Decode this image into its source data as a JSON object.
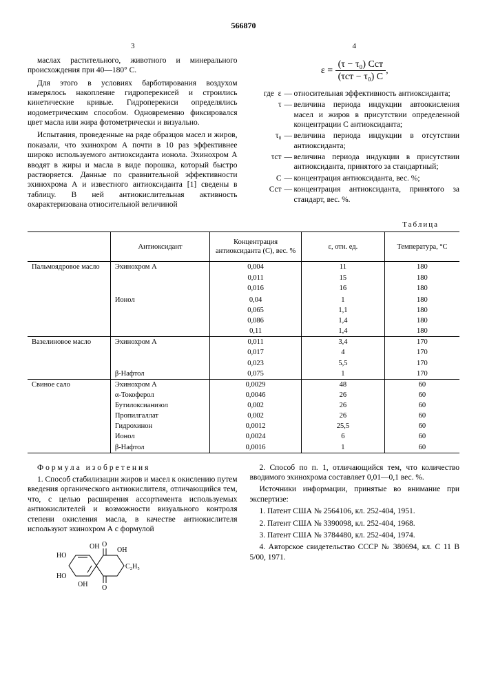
{
  "doc_number": "566870",
  "page_left": "3",
  "page_right": "4",
  "line_markers": [
    "5",
    "10",
    "15",
    "20",
    "25",
    "30"
  ],
  "col_left": {
    "p1": "маслах растительного, животного и минерального происхождения при 40—180° С.",
    "p2": "Для этого в условиях барботирования воздухом измерялось накопление гидроперекисей и строились кинетические кривые. Гидроперекиси определялись иодометрическим способом. Одновременно фиксировался цвет масла или жира фотометрически и визуально.",
    "p3": "Испытания, проведенные на ряде образцов масел и жиров, показали, что эхинохром А почти в 10 раз эффективнее широко используемого антиоксиданта ионола. Эхинохром А вводят в жиры и масла в виде порошка, который быстро растворяется. Данные по сравнительной эффективности эхинохрома А и известного антиоксиданта [1] сведены в таблицу. В ней антиокислительная активность охарактеризована относительной величиной"
  },
  "col_right": {
    "formula_lhs": "ε =",
    "formula_num": "(τ − τ₀) Cст",
    "formula_den": "(τст − τ₀) C",
    "formula_trail": ",",
    "where": "где",
    "defs": [
      {
        "sym": "ε",
        "txt": "относительная эффективность антиоксиданта;"
      },
      {
        "sym": "τ",
        "txt": "величина периода индукции автоокисления масел и жиров в присутствии определенной концентрации C антиоксиданта;"
      },
      {
        "sym": "τ₀",
        "txt": "величина периода индукции в отсутствии антиоксиданта;"
      },
      {
        "sym": "τст",
        "txt": "величина периода индукции в присутствии антиоксиданта, принятого за стандартный;"
      },
      {
        "sym": "C",
        "txt": "концентрация антиоксиданта, вес. %;"
      },
      {
        "sym": "Cст",
        "txt": "концентрация антиоксиданта, принятого за стандарт, вес. %."
      }
    ]
  },
  "table": {
    "label": "Таблица",
    "headers": [
      "",
      "Антиоксидант",
      "Концентрация антиоксиданта (С), вес. %",
      "ε, отн. ед.",
      "Температура, °С"
    ],
    "groups": [
      {
        "name": "Пальмоядровое масло",
        "rows": [
          [
            "Эхинохром А",
            "0,004",
            "11",
            "180"
          ],
          [
            "",
            "0,011",
            "15",
            "180"
          ],
          [
            "",
            "0,016",
            "16",
            "180"
          ],
          [
            "Ионол",
            "0,04",
            "1",
            "180"
          ],
          [
            "",
            "0,065",
            "1,1",
            "180"
          ],
          [
            "",
            "0,086",
            "1,4",
            "180"
          ],
          [
            "",
            "0,11",
            "1,4",
            "180"
          ]
        ],
        "split_after": 3
      },
      {
        "name": "Вазелиновое масло",
        "rows": [
          [
            "Эхинохром А",
            "0,011",
            "3,4",
            "170"
          ],
          [
            "",
            "0,017",
            "4",
            "170"
          ],
          [
            "",
            "0,023",
            "5,5",
            "170"
          ],
          [
            "β-Нафтол",
            "0,075",
            "1",
            "170"
          ]
        ]
      },
      {
        "name": "Свиное сало",
        "rows": [
          [
            "Эхинохром А",
            "0,0029",
            "48",
            "60"
          ],
          [
            "α-Токоферол",
            "0,0046",
            "26",
            "60"
          ],
          [
            "Бутилоксианизол",
            "0,002",
            "26",
            "60"
          ],
          [
            "Пропилгаллат",
            "0,002",
            "26",
            "60"
          ],
          [
            "Гидрохинон",
            "0,0012",
            "25,5",
            "60"
          ],
          [
            "Ионол",
            "0,0024",
            "6",
            "60"
          ],
          [
            "β-Нафтол",
            "0,0016",
            "1",
            "60"
          ]
        ]
      }
    ]
  },
  "bottom_left": {
    "section": "Формула изобретения",
    "p1": "1. Способ стабилизации жиров и масел к окислению путем введения органического антиокислителя, отличающийся тем, что, с целью расширения ассортимента используемых антиокислителей и возможности визуального контроля степени окисления масла, в качестве антиокислителя используют эхинохром А с формулой",
    "chem_labels": {
      "HO1": "HO",
      "HO2": "HO",
      "OH1": "OH",
      "OH2": "OH",
      "OH3": "OH",
      "O1": "O",
      "O2": "O",
      "C2H5": "C₂H₅"
    }
  },
  "bottom_right": {
    "p1": "2. Способ по п. 1, отличающийся тем, что количество вводимого эхинохрома составляет 0,01—0,1 вес. %.",
    "p2": "Источники информации, принятые во внимание при экспертизе:",
    "refs": [
      "1. Патент США № 2564106, кл. 252-404, 1951.",
      "2. Патент США № 3390098, кл. 252-404, 1968.",
      "3. Патент США № 3784480, кл. 252-404, 1974.",
      "4. Авторское свидетельство СССР № 380694, кл. С 11 В 5/00, 1971."
    ]
  }
}
